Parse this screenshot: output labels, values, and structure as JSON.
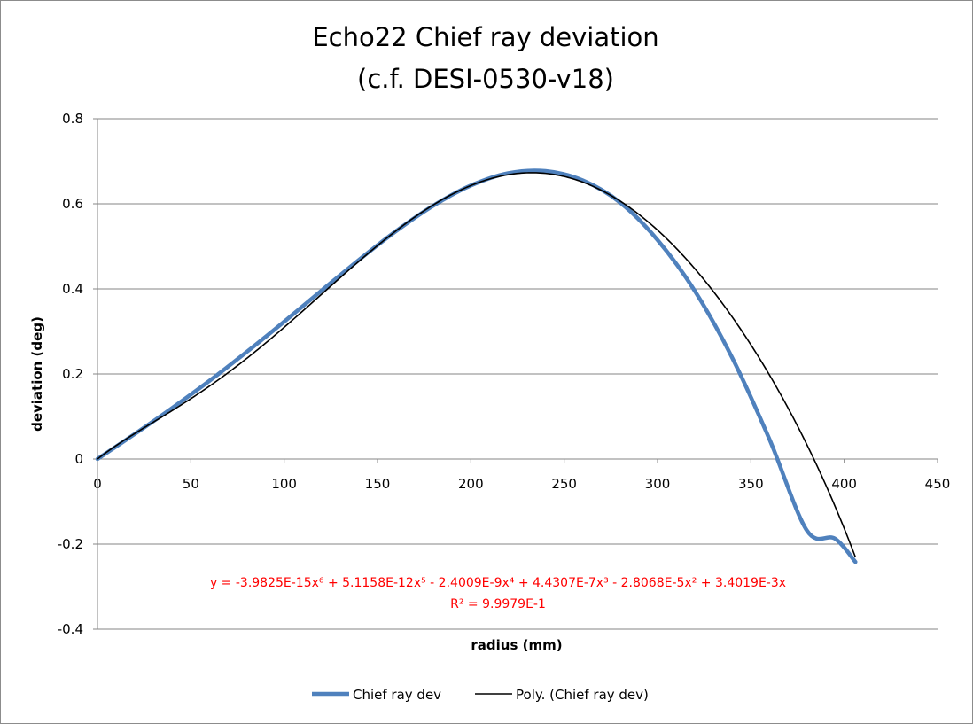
{
  "chart_data": {
    "type": "line",
    "title_lines": [
      "Echo22 Chief ray deviation",
      "(c.f. DESI-0530-v18)"
    ],
    "xlabel": "radius (mm)",
    "ylabel": "deviation (deg)",
    "xlim": [
      0,
      450
    ],
    "ylim": [
      -0.4,
      0.8
    ],
    "xticks": [
      0,
      50,
      100,
      150,
      200,
      250,
      300,
      350,
      400,
      450
    ],
    "yticks": [
      -0.4,
      -0.2,
      0,
      0.2,
      0.4,
      0.6,
      0.8
    ],
    "ytick_labels": [
      "-0.4",
      "-0.2",
      "0",
      "0.2",
      "0.4",
      "0.6",
      "0.8"
    ],
    "grid": "horizontal",
    "legend_position": "bottom",
    "series": [
      {
        "name": "Chief ray dev",
        "color": "#4f81bd",
        "x": [
          0,
          20,
          40,
          60,
          80,
          100,
          120,
          140,
          160,
          180,
          200,
          220,
          240,
          260,
          280,
          300,
          320,
          340,
          360,
          380,
          395,
          406
        ],
        "y": [
          0.0,
          0.059,
          0.12,
          0.184,
          0.252,
          0.323,
          0.396,
          0.468,
          0.536,
          0.596,
          0.643,
          0.672,
          0.677,
          0.655,
          0.603,
          0.515,
          0.395,
          0.238,
          0.046,
          -0.168,
          -0.187,
          -0.242
        ]
      },
      {
        "name": "Poly. (Chief ray dev)",
        "color": "#000000",
        "type": "polynomial_trendline",
        "coefficients_desc": [
          -3.9825e-15,
          5.1158e-12,
          -2.4009e-09,
          4.4307e-07,
          -2.8068e-05,
          0.0034019,
          0
        ],
        "x_range": [
          0,
          406
        ]
      }
    ],
    "annotation": {
      "equation": "y = -3.9825E-15x⁶ + 5.1158E-12x⁵ - 2.4009E-9x⁴ + 4.4307E-7x³ - 2.8068E-5x² + 3.4019E-3x",
      "r_squared": "R² = 9.9979E-1",
      "color": "#ff0000"
    }
  }
}
